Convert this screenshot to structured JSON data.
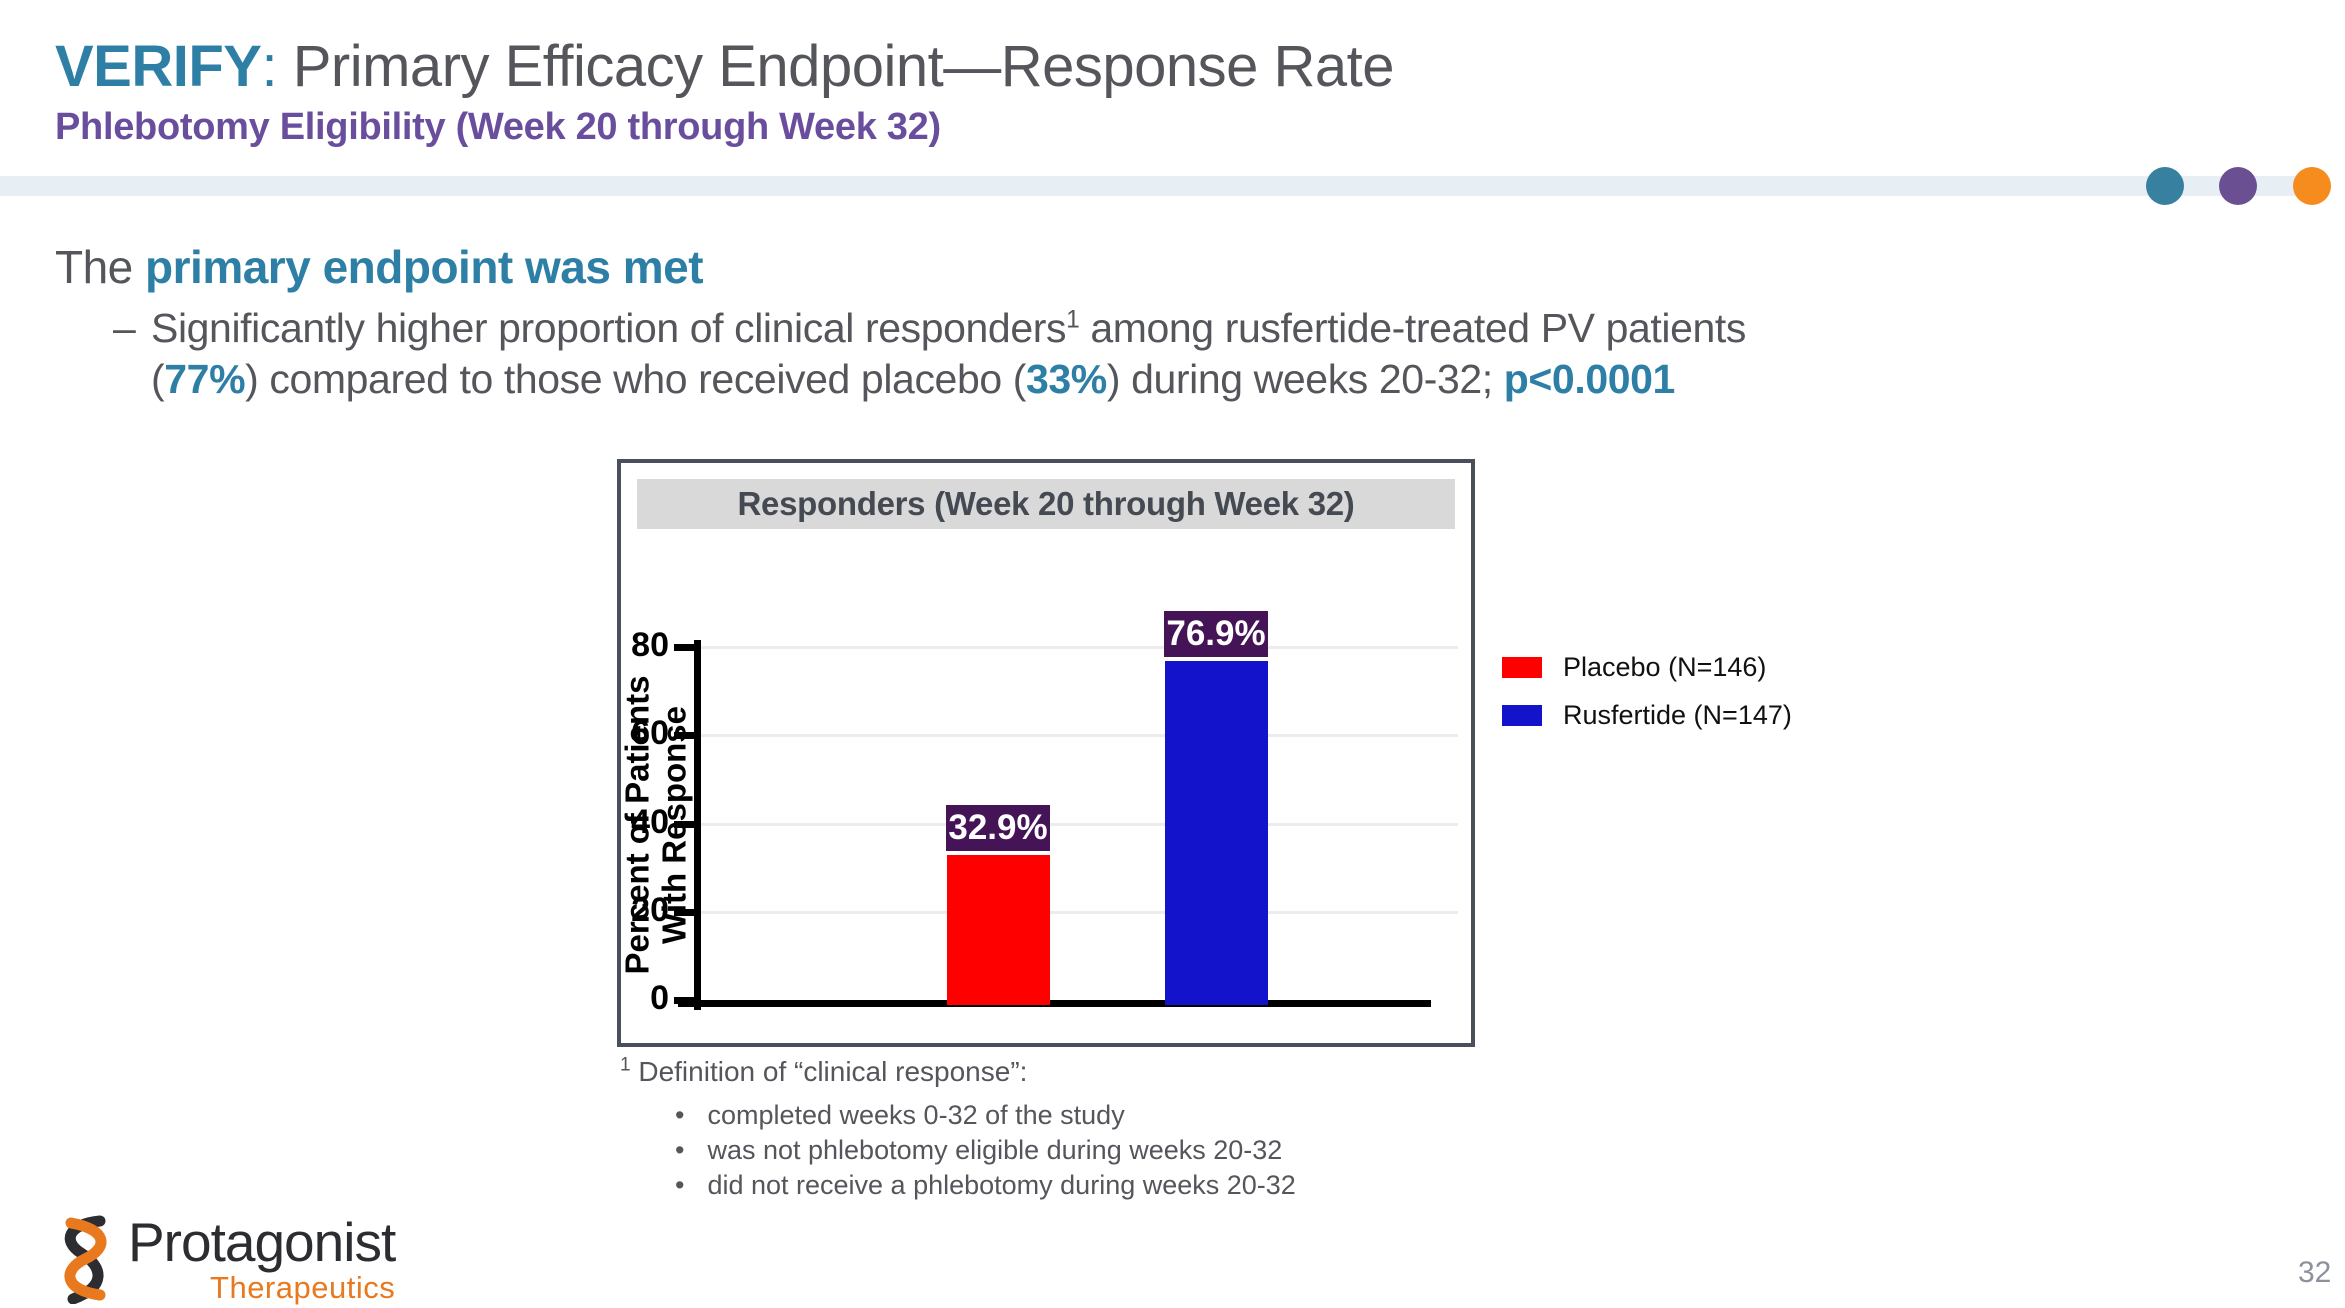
{
  "slide": {
    "title": {
      "highlight": "VERIFY",
      "colon": ": ",
      "rest": "Primary Efficacy Endpoint—Response Rate"
    },
    "subtitle": "Phlebotomy Eligibility (Week 20 through Week 32)",
    "page_number": "32"
  },
  "accents": {
    "teal": "#2E7FA6",
    "purple": "#6A4E9E",
    "dot_teal": "#38809F",
    "dot_purple": "#6B4F93",
    "dot_orange": "#F68B1E",
    "band_blue": "#E7EFF4",
    "text_gray": "#54565B"
  },
  "body": {
    "lead": {
      "prefix": "The ",
      "highlight": "primary endpoint was met"
    },
    "bullet": {
      "dash": "–",
      "line1": {
        "a": "Significantly higher proportion of clinical responders",
        "sup": "1",
        "b": " among rusfertide-treated PV patients"
      },
      "line2": {
        "a": "(",
        "pct1": "77%",
        "b": ") compared to those who received placebo (",
        "pct2": "33%",
        "c": ") during weeks 20-32; ",
        "pvalue": "p<0.0001"
      }
    }
  },
  "chart_data": {
    "type": "bar",
    "title": "Responders (Week 20 through Week 32)",
    "categories": [
      "Placebo (N=146)",
      "Rusfertide (N=147)"
    ],
    "values": [
      32.9,
      76.9
    ],
    "bar_labels": [
      "32.9%",
      "76.9%"
    ],
    "bar_colors": [
      "#FF0000",
      "#1313CC"
    ],
    "label_box_color": "#441457",
    "ylabel_lines": [
      "Percent of Patients",
      "With Response"
    ],
    "yticks": [
      0,
      20,
      40,
      60,
      80
    ],
    "ylim": [
      0,
      85
    ],
    "grid": "horizontal",
    "legend_position": "right",
    "legend": [
      {
        "label": "Placebo (N=146)",
        "color": "#FF0000"
      },
      {
        "label": "Rusfertide (N=147)",
        "color": "#1313CC"
      }
    ]
  },
  "footnote": {
    "sup": "1",
    "intro": " Definition of “clinical response”:",
    "items": [
      "completed weeks 0-32 of the study",
      "was not phlebotomy eligible during weeks 20-32",
      "did not receive a phlebotomy during weeks 20-32"
    ]
  },
  "footer": {
    "logo_name": "Protagonist",
    "logo_division": "Therapeutics"
  }
}
